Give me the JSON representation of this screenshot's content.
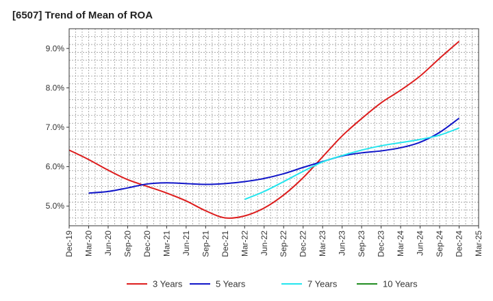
{
  "chart_data": {
    "type": "line",
    "title": "[6507]  Trend of Mean of ROA",
    "xlabel": "",
    "ylabel": "",
    "x_ticks": [
      "Dec-19",
      "Mar-20",
      "Jun-20",
      "Sep-20",
      "Dec-20",
      "Mar-21",
      "Jun-21",
      "Sep-21",
      "Dec-21",
      "Mar-22",
      "Jun-22",
      "Sep-22",
      "Dec-22",
      "Mar-23",
      "Jun-23",
      "Sep-23",
      "Dec-23",
      "Mar-24",
      "Jun-24",
      "Sep-24",
      "Dec-24",
      "Mar-25"
    ],
    "y_ticks": [
      5.0,
      6.0,
      7.0,
      8.0,
      9.0
    ],
    "y_tick_labels": [
      "5.0%",
      "6.0%",
      "7.0%",
      "8.0%",
      "9.0%"
    ],
    "ylim": [
      4.5,
      9.5
    ],
    "grid": true,
    "legend_position": "bottom",
    "series": [
      {
        "name": "3 Years",
        "color": "#dd1c1c",
        "x": [
          "Dec-19",
          "Mar-20",
          "Jun-20",
          "Sep-20",
          "Dec-20",
          "Mar-21",
          "Jun-21",
          "Sep-21",
          "Dec-21",
          "Mar-22",
          "Jun-22",
          "Sep-22",
          "Dec-22",
          "Mar-23",
          "Jun-23",
          "Sep-23",
          "Dec-23",
          "Mar-24",
          "Jun-24",
          "Sep-24",
          "Dec-24"
        ],
        "values": [
          6.42,
          6.18,
          5.91,
          5.67,
          5.5,
          5.33,
          5.13,
          4.88,
          4.7,
          4.75,
          4.95,
          5.28,
          5.72,
          6.25,
          6.78,
          7.22,
          7.62,
          7.94,
          8.3,
          8.75,
          9.18
        ]
      },
      {
        "name": "5 Years",
        "color": "#0f14c8",
        "x": [
          "Mar-20",
          "Jun-20",
          "Sep-20",
          "Dec-20",
          "Mar-21",
          "Jun-21",
          "Sep-21",
          "Dec-21",
          "Mar-22",
          "Jun-22",
          "Sep-22",
          "Dec-22",
          "Mar-23",
          "Jun-23",
          "Sep-23",
          "Dec-23",
          "Mar-24",
          "Jun-24",
          "Sep-24",
          "Dec-24"
        ],
        "values": [
          5.33,
          5.37,
          5.46,
          5.56,
          5.59,
          5.57,
          5.55,
          5.57,
          5.62,
          5.7,
          5.82,
          5.98,
          6.13,
          6.27,
          6.35,
          6.4,
          6.48,
          6.62,
          6.87,
          7.23
        ]
      },
      {
        "name": "7 Years",
        "color": "#22e5ee",
        "x": [
          "Mar-22",
          "Jun-22",
          "Sep-22",
          "Dec-22",
          "Mar-23",
          "Jun-23",
          "Sep-23",
          "Dec-23",
          "Mar-24",
          "Jun-24",
          "Sep-24",
          "Dec-24"
        ],
        "values": [
          5.17,
          5.37,
          5.62,
          5.88,
          6.12,
          6.28,
          6.42,
          6.53,
          6.61,
          6.69,
          6.8,
          6.98
        ]
      },
      {
        "name": "10 Years",
        "color": "#1f8c1f",
        "x": [],
        "values": []
      }
    ]
  }
}
